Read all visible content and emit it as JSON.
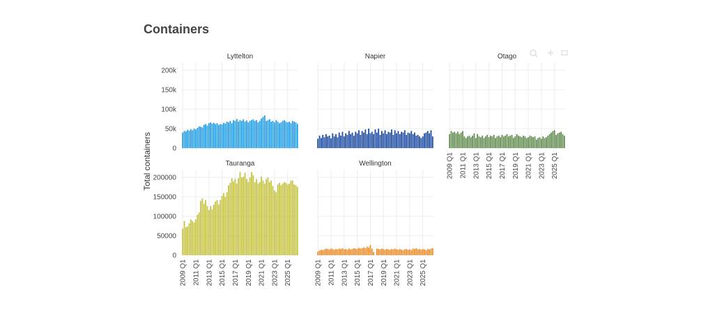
{
  "page": {
    "title": "Containers"
  },
  "toolbar": {
    "icons": [
      "zoom-icon",
      "pan-icon",
      "reset-icon"
    ]
  },
  "chart_data": {
    "type": "bar",
    "layout": "facet-grid",
    "ylabel": "Total containers",
    "x_ticks": [
      "2009 Q1",
      "2011 Q1",
      "2013 Q1",
      "2015 Q1",
      "2017 Q1",
      "2019 Q1",
      "2021 Q1",
      "2023 Q1",
      "2025 Q1"
    ],
    "x_range_quarters": [
      0,
      70
    ],
    "series": [
      {
        "name": "Lyttelton",
        "color": "#1c9bea",
        "y_ticks": [
          "0",
          "50k",
          "100k",
          "150k",
          "200k"
        ],
        "y_tick_values": [
          0,
          50000,
          100000,
          150000,
          200000
        ],
        "ylim": [
          0,
          220000
        ],
        "values": [
          40000,
          44000,
          43000,
          47000,
          45000,
          48000,
          46000,
          50000,
          48000,
          52000,
          56000,
          55000,
          53000,
          60000,
          62000,
          58000,
          64000,
          66000,
          63000,
          65000,
          62000,
          64000,
          60000,
          62000,
          61000,
          65000,
          63000,
          68000,
          66000,
          70000,
          64000,
          72000,
          70000,
          75000,
          68000,
          72000,
          70000,
          74000,
          68000,
          71000,
          66000,
          70000,
          72000,
          74000,
          70000,
          72000,
          66000,
          70000,
          76000,
          80000,
          84000,
          70000,
          72000,
          74000,
          68000,
          70000,
          66000,
          72000,
          68000,
          64000,
          66000,
          70000,
          72000,
          68000,
          66000,
          68000,
          64000,
          70000,
          68000,
          66000,
          62000
        ]
      },
      {
        "name": "Napier",
        "color": "#17479e",
        "y_ticks": [
          "0",
          "50k",
          "100k",
          "150k",
          "200k"
        ],
        "y_tick_values": [
          0,
          50000,
          100000,
          150000,
          200000
        ],
        "ylim": [
          0,
          220000
        ],
        "values": [
          24000,
          32000,
          26000,
          34000,
          28000,
          36000,
          30000,
          32000,
          25000,
          38000,
          30000,
          36000,
          28000,
          40000,
          32000,
          42000,
          30000,
          38000,
          34000,
          44000,
          36000,
          40000,
          32000,
          42000,
          38000,
          46000,
          34000,
          44000,
          40000,
          48000,
          36000,
          50000,
          38000,
          42000,
          36000,
          48000,
          40000,
          50000,
          34000,
          44000,
          38000,
          46000,
          36000,
          42000,
          40000,
          48000,
          34000,
          46000,
          38000,
          44000,
          36000,
          42000,
          40000,
          46000,
          34000,
          40000,
          38000,
          44000,
          36000,
          40000,
          32000,
          34000,
          30000,
          26000,
          30000,
          38000,
          40000,
          44000,
          38000,
          46000,
          30000
        ]
      },
      {
        "name": "Otago",
        "color": "#5e8a4b",
        "y_ticks": [
          "0",
          "50k",
          "100k",
          "150k",
          "200k"
        ],
        "y_tick_values": [
          0,
          50000,
          100000,
          150000,
          200000
        ],
        "ylim": [
          0,
          220000
        ],
        "values": [
          36000,
          44000,
          40000,
          42000,
          38000,
          42000,
          36000,
          40000,
          44000,
          30000,
          26000,
          30000,
          32000,
          28000,
          32000,
          38000,
          26000,
          36000,
          30000,
          28000,
          32000,
          26000,
          30000,
          34000,
          28000,
          32000,
          30000,
          34000,
          26000,
          30000,
          32000,
          28000,
          34000,
          30000,
          32000,
          36000,
          30000,
          32000,
          34000,
          26000,
          30000,
          36000,
          32000,
          30000,
          28000,
          32000,
          30000,
          26000,
          28000,
          32000,
          30000,
          28000,
          30000,
          22000,
          26000,
          28000,
          24000,
          30000,
          26000,
          28000,
          32000,
          36000,
          40000,
          44000,
          46000,
          34000,
          38000,
          40000,
          42000,
          36000,
          32000
        ]
      },
      {
        "name": "Tauranga",
        "color": "#c4c23c",
        "y_ticks": [
          "0",
          "50000",
          "100000",
          "150000",
          "200000"
        ],
        "y_tick_values": [
          0,
          50000,
          100000,
          150000,
          200000
        ],
        "ylim": [
          0,
          220000
        ],
        "values": [
          68000,
          88000,
          72000,
          74000,
          82000,
          92000,
          88000,
          84000,
          92000,
          104000,
          110000,
          140000,
          146000,
          132000,
          142000,
          126000,
          116000,
          126000,
          118000,
          130000,
          138000,
          142000,
          130000,
          142000,
          152000,
          160000,
          150000,
          162000,
          180000,
          186000,
          198000,
          190000,
          196000,
          184000,
          198000,
          214000,
          200000,
          202000,
          212000,
          196000,
          188000,
          200000,
          214000,
          206000,
          188000,
          196000,
          184000,
          188000,
          202000,
          192000,
          184000,
          196000,
          200000,
          188000,
          192000,
          178000,
          166000,
          162000,
          182000,
          186000,
          180000,
          184000,
          188000,
          186000,
          182000,
          184000,
          192000,
          192000,
          182000,
          180000,
          176000
        ]
      },
      {
        "name": "Wellington",
        "color": "#f08a24",
        "y_ticks": [
          "0",
          "50000",
          "100000",
          "150000",
          "200000"
        ],
        "y_tick_values": [
          0,
          50000,
          100000,
          150000,
          200000
        ],
        "ylim": [
          0,
          220000
        ],
        "values": [
          9000,
          12000,
          14000,
          13000,
          15000,
          17000,
          16000,
          15000,
          17000,
          16000,
          14000,
          16000,
          15000,
          17000,
          16000,
          18000,
          15000,
          16000,
          14000,
          17000,
          15000,
          16000,
          18000,
          17000,
          16000,
          19000,
          17000,
          18000,
          20000,
          18000,
          22000,
          20000,
          26000,
          17000,
          8000,
          0,
          17000,
          16000,
          15000,
          17000,
          16000,
          14000,
          16000,
          15000,
          14000,
          16000,
          15000,
          17000,
          15000,
          14000,
          16000,
          14000,
          13000,
          15000,
          16000,
          14000,
          15000,
          13000,
          17000,
          16000,
          18000,
          15000,
          16000,
          14000,
          16000,
          15000,
          13000,
          16000,
          15000,
          17000,
          18000
        ]
      }
    ]
  }
}
